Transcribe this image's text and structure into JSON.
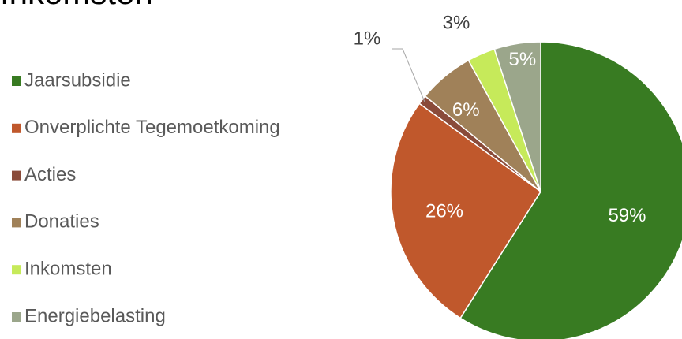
{
  "chart_data": {
    "type": "pie",
    "title": "Inkomsten",
    "categories": [
      "Jaarsubsidie",
      "Onverplichte Tegemoetkoming",
      "Acties",
      "Donaties",
      "Inkomsten",
      "Energiebelasting"
    ],
    "values": [
      59,
      26,
      1,
      6,
      3,
      5
    ],
    "value_labels": [
      "59%",
      "26%",
      "1%",
      "6%",
      "3%",
      "5%"
    ],
    "colors": [
      "#387b22",
      "#c0582c",
      "#8a4b3a",
      "#a08159",
      "#c6ea5a",
      "#9ba68b"
    ],
    "legend": "left"
  }
}
